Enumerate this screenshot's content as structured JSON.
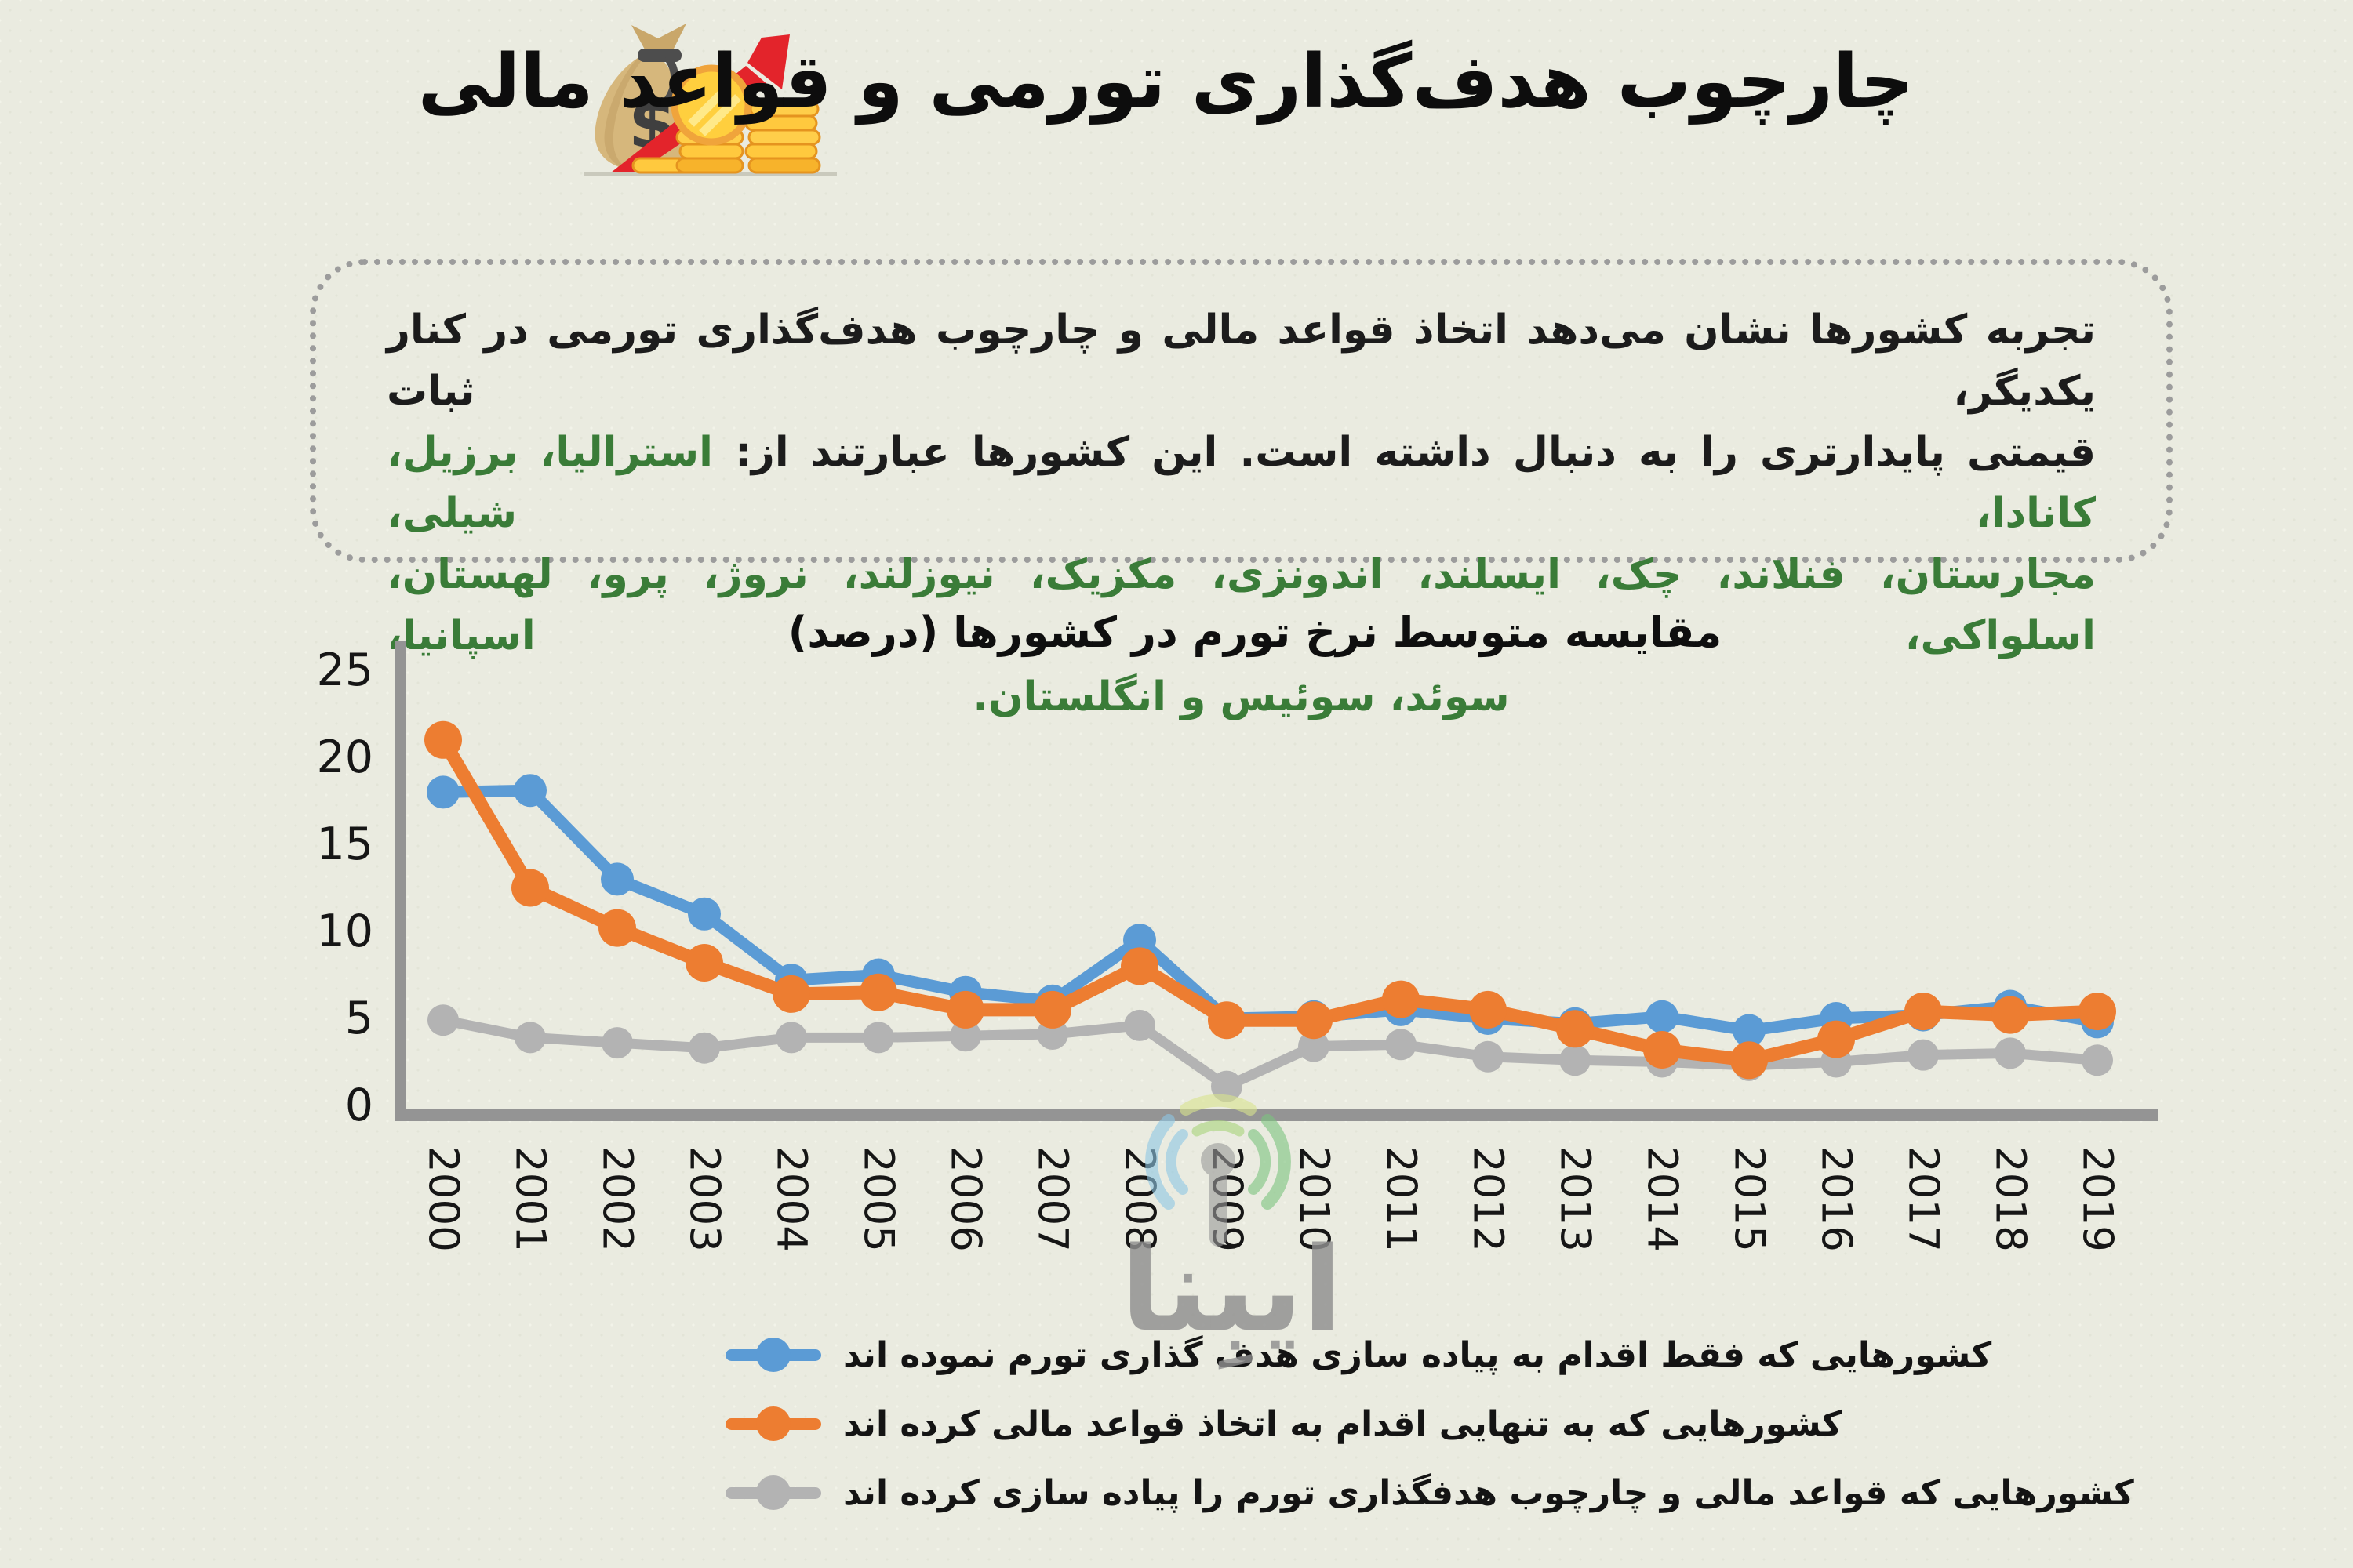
{
  "header": {
    "title": "چارچوب هدف‌گذاری تورمی و قواعد مالی",
    "icon": "money-bag-coins-rising-arrow"
  },
  "info_box": {
    "line1": "تجربه کشورها نشان می‌دهد اتخاذ قواعد مالی و چارچوب هدف‌گذاری تورمی در کنار یکدیگر، ثبات",
    "line2_black": "قیمتی پایدارتری را به دنبال داشته است. این کشورها عبارتند از: ",
    "line2_green": "استرالیا، برزیل، کانادا، شیلی،",
    "line3_green": "مجارستان، فنلاند، چک، ایسلند، اندونزی، مکزیک، نیوزلند، نروژ، پرو، لهستان، اسلواکی، اسپانیا،",
    "line4_green": "سوئد، سوئیس و انگلستان.",
    "green_color": "#3a7c38"
  },
  "watermark": {
    "text": "ایبِنا"
  },
  "chart_data": {
    "type": "line",
    "title": "مقایسه متوسط نرخ تورم در کشورها (درصد)",
    "x": [
      2000,
      2001,
      2002,
      2003,
      2004,
      2005,
      2006,
      2007,
      2008,
      2009,
      2010,
      2011,
      2012,
      2013,
      2014,
      2015,
      2016,
      2017,
      2018,
      2019
    ],
    "y_ticks": [
      0,
      5,
      10,
      15,
      20,
      25
    ],
    "ylim": [
      0,
      25
    ],
    "grid": false,
    "legend_position": "bottom",
    "series": [
      {
        "name": "کشورهایی که فقط اقدام به پیاده سازی هدف گذاری تورم نموده اند",
        "color": "#5b9bd5",
        "values": [
          18.0,
          18.1,
          13.0,
          11.0,
          7.2,
          7.5,
          6.5,
          6.0,
          9.5,
          5.0,
          5.1,
          5.5,
          5.0,
          4.7,
          5.1,
          4.3,
          5.0,
          5.2,
          5.7,
          4.8
        ]
      },
      {
        "name": "کشورهایی که به تنهایی اقدام به اتخاذ قواعد مالی کرده اند",
        "color": "#ed7d31",
        "values": [
          21.0,
          12.5,
          10.2,
          8.2,
          6.4,
          6.5,
          5.5,
          5.5,
          8.0,
          4.9,
          4.9,
          6.1,
          5.5,
          4.4,
          3.2,
          2.6,
          3.8,
          5.4,
          5.2,
          5.4
        ]
      },
      {
        "name": "کشورهایی که قواعد مالی و چارچوب هدفگذاری تورم را پیاده سازی کرده اند",
        "color": "#b3b3b3",
        "values": [
          4.9,
          3.9,
          3.6,
          3.3,
          3.9,
          3.9,
          4.0,
          4.1,
          4.6,
          1.1,
          3.4,
          3.5,
          2.8,
          2.6,
          2.5,
          2.3,
          2.5,
          2.9,
          3.0,
          2.6
        ]
      }
    ],
    "axis_color": "#949494",
    "tick_color": "#161616"
  }
}
